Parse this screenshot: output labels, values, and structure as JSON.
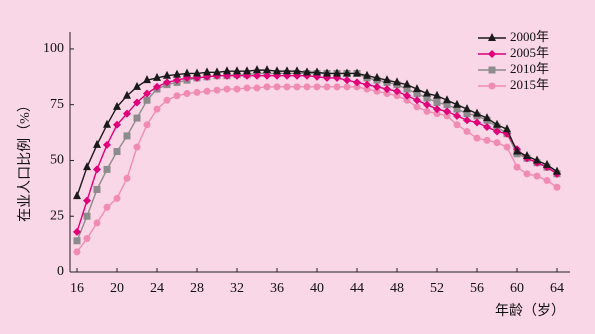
{
  "chart_data": {
    "type": "line",
    "x_label": "年龄（岁）",
    "y_label": "在业人口比例（%）",
    "x": [
      16,
      17,
      18,
      19,
      20,
      21,
      22,
      23,
      24,
      25,
      26,
      27,
      28,
      29,
      30,
      31,
      32,
      33,
      34,
      35,
      36,
      37,
      38,
      39,
      40,
      41,
      42,
      43,
      44,
      45,
      46,
      47,
      48,
      49,
      50,
      51,
      52,
      53,
      54,
      55,
      56,
      57,
      58,
      59,
      60,
      61,
      62,
      63,
      64
    ],
    "xlim": [
      15.3,
      65.3
    ],
    "xticks": [
      16,
      20,
      24,
      28,
      32,
      36,
      40,
      44,
      48,
      52,
      56,
      60,
      64
    ],
    "ylim": [
      0,
      104
    ],
    "yticks": [
      0,
      25,
      50,
      75,
      100
    ],
    "legend": "upper right",
    "series": [
      {
        "name": "2000年",
        "color": "#1a1a1a",
        "marker": "triangle",
        "values": [
          34,
          47,
          57,
          66,
          74,
          79,
          83,
          86,
          87,
          88,
          88.5,
          89,
          89,
          89.5,
          89.5,
          90,
          90,
          90,
          90.5,
          90.5,
          90,
          90,
          90,
          89.5,
          89.5,
          89,
          89,
          89,
          89,
          88,
          87,
          86,
          85,
          84,
          82,
          80,
          79,
          77,
          75,
          73,
          71,
          69,
          66,
          64,
          54,
          52,
          50,
          48,
          45
        ]
      },
      {
        "name": "2005年",
        "color": "#e0007a",
        "marker": "diamond",
        "values": [
          18,
          32,
          46,
          57,
          66,
          71,
          76,
          80,
          83,
          85,
          86,
          87,
          87,
          87.5,
          88,
          88,
          88,
          88,
          88,
          88,
          88,
          88,
          88,
          88,
          87.5,
          87,
          87,
          86,
          85,
          84,
          83,
          82,
          81,
          79,
          77,
          75,
          73,
          72,
          70,
          68,
          67,
          65,
          63,
          62,
          55,
          51,
          49,
          47,
          44
        ]
      },
      {
        "name": "2010年",
        "color": "#8c8c8c",
        "marker": "square",
        "values": [
          14,
          25,
          37,
          46,
          54,
          61,
          69,
          77,
          82,
          84,
          85,
          86,
          87,
          87.5,
          88,
          88,
          88.5,
          88.5,
          89,
          89,
          89,
          89,
          89,
          89,
          89,
          89,
          89,
          89,
          89,
          87,
          86,
          85,
          84,
          82,
          80,
          78,
          76,
          75,
          73,
          71,
          70,
          68,
          65,
          62,
          53,
          51,
          49,
          47,
          44
        ]
      },
      {
        "name": "2015年",
        "color": "#f08cb4",
        "marker": "circle",
        "values": [
          9,
          15,
          22,
          29,
          33,
          42,
          56,
          66,
          73,
          77,
          79,
          80,
          80.5,
          81,
          81.5,
          82,
          82,
          82.5,
          82.5,
          83,
          83,
          83,
          83,
          83,
          83,
          83,
          83,
          83,
          83,
          82,
          81,
          80,
          79,
          77,
          74,
          72,
          71,
          70,
          66,
          63,
          60,
          59,
          58,
          56,
          47,
          44,
          43,
          41,
          38
        ]
      }
    ]
  }
}
